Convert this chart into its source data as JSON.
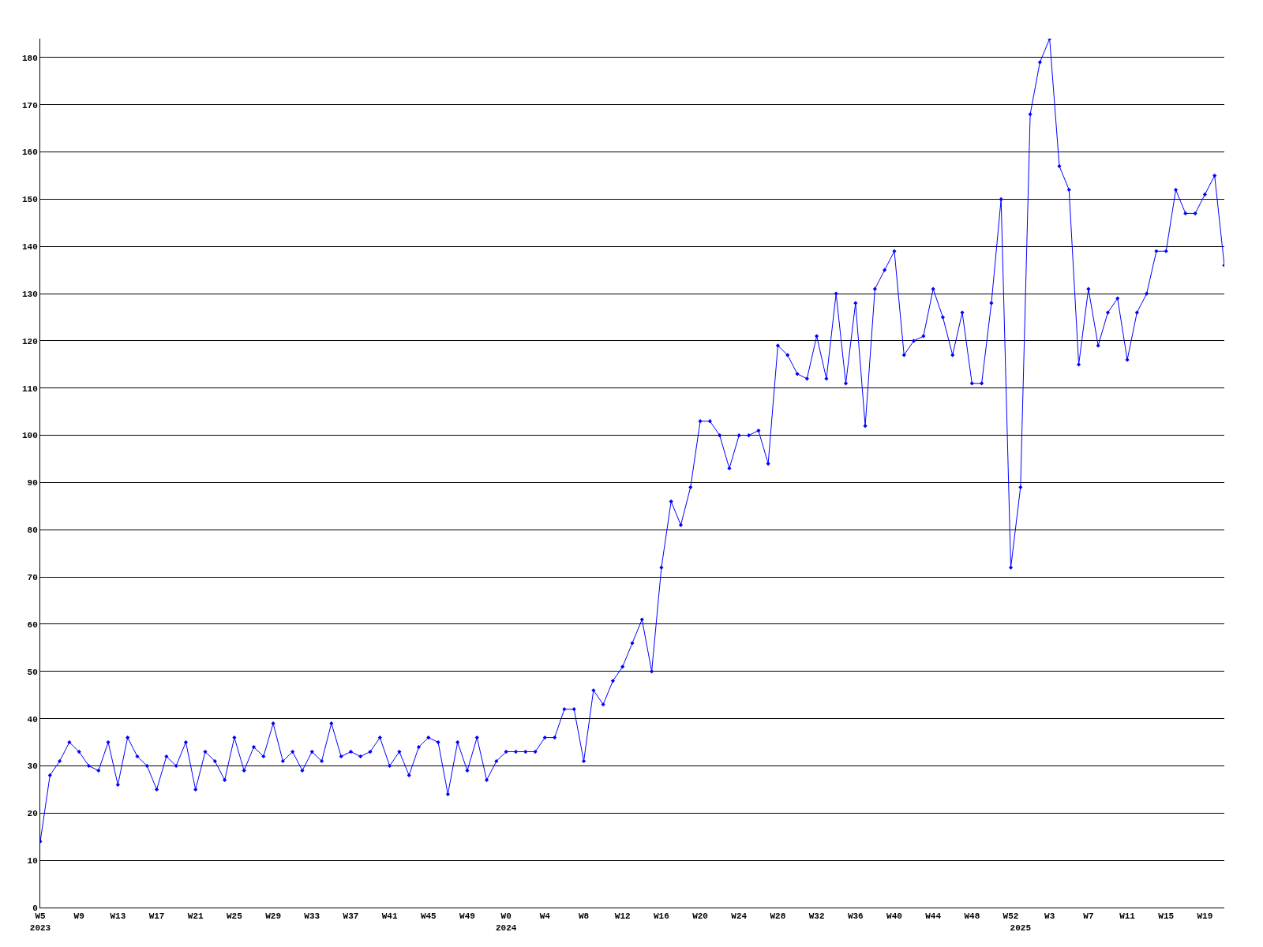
{
  "chart_data": {
    "type": "line",
    "categories": [
      "W5\n2023",
      null,
      null,
      null,
      "W9",
      null,
      null,
      null,
      "W13",
      null,
      null,
      null,
      "W17",
      null,
      null,
      null,
      "W21",
      null,
      null,
      null,
      "W25",
      null,
      null,
      null,
      "W29",
      null,
      null,
      null,
      "W33",
      null,
      null,
      null,
      "W37",
      null,
      null,
      null,
      "W41",
      null,
      null,
      null,
      "W45",
      null,
      null,
      null,
      "W49",
      null,
      null,
      null,
      "W0\n2024",
      null,
      null,
      null,
      "W4",
      null,
      null,
      null,
      "W8",
      null,
      null,
      null,
      "W12",
      null,
      null,
      null,
      "W16",
      null,
      null,
      null,
      "W20",
      null,
      null,
      null,
      "W24",
      null,
      null,
      null,
      "W28",
      null,
      null,
      null,
      "W32",
      null,
      null,
      null,
      "W36",
      null,
      null,
      null,
      "W40",
      null,
      null,
      null,
      "W44",
      null,
      null,
      null,
      "W48",
      null,
      null,
      null,
      "W52",
      "\n2025",
      null,
      null,
      "W3",
      null,
      null,
      null,
      "W7",
      null,
      null,
      null,
      "W11",
      null,
      null,
      null,
      "W15",
      null,
      null,
      null,
      "W19",
      null,
      null
    ],
    "series": [
      {
        "color": "#0000ff",
        "values": [
          14,
          28,
          31,
          35,
          33,
          30,
          29,
          35,
          26,
          36,
          32,
          30,
          25,
          32,
          30,
          35,
          25,
          33,
          31,
          27,
          36,
          29,
          34,
          32,
          39,
          31,
          33,
          29,
          33,
          31,
          39,
          32,
          33,
          32,
          33,
          36,
          30,
          33,
          28,
          34,
          36,
          35,
          24,
          35,
          29,
          36,
          27,
          31,
          33,
          33,
          33,
          33,
          36,
          36,
          42,
          42,
          31,
          46,
          43,
          48,
          51,
          56,
          61,
          50,
          72,
          86,
          81,
          89,
          103,
          103,
          100,
          93,
          100,
          100,
          101,
          94,
          119,
          117,
          113,
          112,
          121,
          112,
          130,
          111,
          128,
          102,
          131,
          135,
          139,
          117,
          120,
          121,
          131,
          125,
          117,
          126,
          111,
          111,
          128,
          150,
          72,
          89,
          168,
          179,
          184,
          157,
          152,
          115,
          131,
          119,
          126,
          129,
          116,
          126,
          130,
          139,
          139,
          152,
          147,
          147,
          151,
          155,
          136
        ]
      }
    ],
    "ylim": [
      0,
      184
    ],
    "yticks": [
      0,
      10,
      20,
      30,
      40,
      50,
      60,
      70,
      80,
      90,
      100,
      110,
      120,
      130,
      140,
      150,
      160,
      170,
      180
    ],
    "grid": "y",
    "marker": "diamond",
    "line_style": "solid",
    "legend": false
  }
}
